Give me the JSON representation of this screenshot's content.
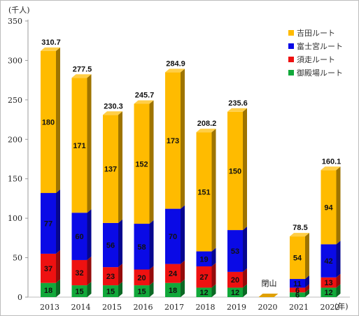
{
  "chart_data": {
    "type": "bar",
    "stacked": true,
    "y_unit_label": "(千人)",
    "x_unit_label": "(年)",
    "categories": [
      "2013",
      "2014",
      "2015",
      "2016",
      "2017",
      "2018",
      "2019",
      "2020",
      "2021",
      "2022"
    ],
    "ylim": [
      0,
      350
    ],
    "yticks": [
      0,
      50,
      100,
      150,
      200,
      250,
      300,
      350
    ],
    "grid": false,
    "legend_position": "top-right",
    "series": [
      {
        "name": "御殿場ルート",
        "color": "#11a83a",
        "values": [
          18,
          15,
          15,
          15,
          18,
          12,
          12,
          0,
          6,
          12
        ]
      },
      {
        "name": "須走ルート",
        "color": "#ee1111",
        "values": [
          37,
          32,
          23,
          20,
          24,
          27,
          20,
          0,
          6,
          13
        ]
      },
      {
        "name": "富士宮ルート",
        "color": "#0a0ae6",
        "values": [
          77,
          60,
          56,
          58,
          70,
          19,
          53,
          0,
          11,
          42
        ]
      },
      {
        "name": "吉田ルート",
        "color": "#ffbb00",
        "values": [
          180,
          171,
          137,
          152,
          173,
          151,
          150,
          0,
          54,
          94
        ]
      }
    ],
    "totals": [
      "310.7",
      "277.5",
      "230.3",
      "245.7",
      "284.9",
      "208.2",
      "235.6",
      "",
      "78.5",
      "160.1"
    ],
    "annotations": [
      {
        "category": "2020",
        "text": "閉山"
      }
    ]
  }
}
